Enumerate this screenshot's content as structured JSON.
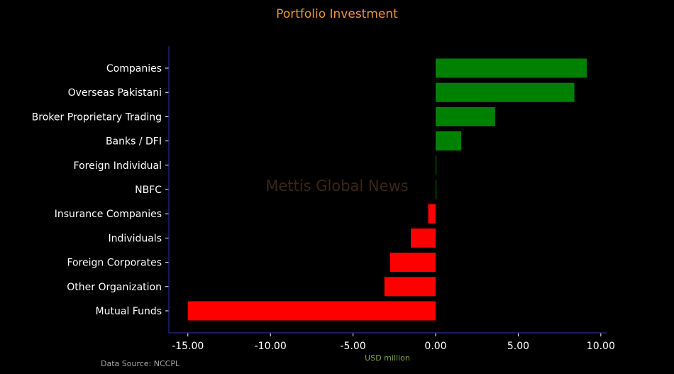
{
  "chart_data": {
    "type": "bar",
    "orientation": "horizontal",
    "title": "Portfolio Investment",
    "xlabel": "USD million",
    "ylabel": "",
    "categories": [
      "Companies",
      "Overseas Pakistani",
      "Broker Proprietary Trading",
      "Banks / DFI",
      "Foreign Individual",
      "NBFC",
      "Insurance Companies",
      "Individuals",
      "Foreign Corporates ",
      "Other Organization",
      "Mutual Funds"
    ],
    "values": [
      9.15,
      8.4,
      3.6,
      1.55,
      0.04,
      0.03,
      -0.45,
      -1.5,
      -2.75,
      -3.1,
      -15.0
    ],
    "xlim": [
      -16.15,
      10.35
    ],
    "xticks": [
      -15,
      -10,
      -5,
      0,
      5,
      10
    ],
    "xtick_labels": [
      "-15.00",
      "-10.00",
      "-5.00",
      "0.00",
      "5.00",
      "10.00"
    ],
    "grid": false,
    "legend": "none",
    "source": "Data Source: NCCPL",
    "watermark": "Mettis Global News"
  },
  "colors": {
    "background": "#000000",
    "positive": "#008000",
    "negative": "#ff0000",
    "title": "#e8963a",
    "axis_title": "#7fa84a",
    "text": "#ffffff",
    "source": "#a8a8a8",
    "axis_line": "#2a2e8c",
    "watermark": "#3a2612"
  }
}
